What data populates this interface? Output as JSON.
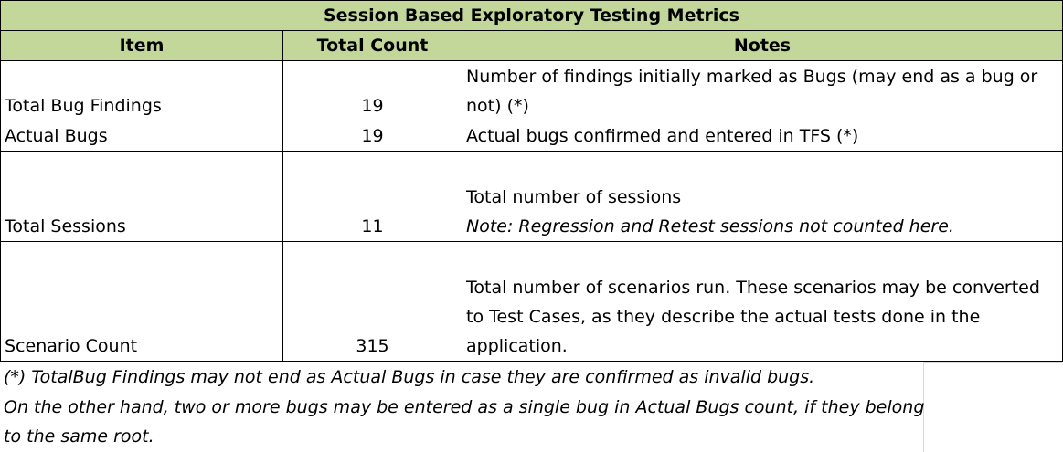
{
  "table": {
    "title": "Session Based Exploratory Testing Metrics",
    "headers": {
      "item": "Item",
      "count": "Total Count",
      "notes": "Notes"
    },
    "rows": [
      {
        "item": "Total Bug Findings",
        "count": "19",
        "notes": [
          "Number of findings initially marked as Bugs (may end as a bug or",
          "not) (*)"
        ]
      },
      {
        "item": "Actual Bugs",
        "count": "19",
        "notes": [
          "Actual bugs confirmed and entered in TFS (*)"
        ]
      },
      {
        "item": "Total Sessions",
        "count": "11",
        "notes": [
          "Total number of sessions"
        ],
        "notes_italic": "Note: Regression and Retest sessions not counted here."
      },
      {
        "item": "Scenario Count",
        "count": "315",
        "notes": [
          "Total number of scenarios run. These scenarios may be converted",
          "to Test Cases, as they describe the actual tests done in the",
          "application."
        ]
      }
    ]
  },
  "footnote": {
    "lines": [
      "(*) TotalBug Findings may not end as Actual Bugs in case they are confirmed as invalid bugs.",
      "On the other hand, two or more bugs may be entered as a single bug in Actual Bugs count, if they belong",
      "to the same root."
    ]
  },
  "colors": {
    "header_fill": "#c4d79b",
    "border": "#000000",
    "gridline": "#d9d9d9"
  }
}
